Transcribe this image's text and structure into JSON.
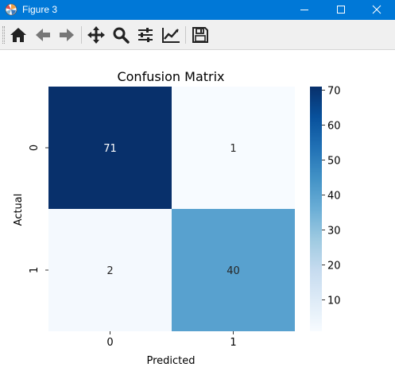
{
  "window": {
    "title": "Figure 3",
    "accent": "#0078d7"
  },
  "toolbar": {
    "buttons": [
      {
        "name": "home-icon",
        "label": "Home"
      },
      {
        "name": "back-arrow-icon",
        "label": "Back"
      },
      {
        "name": "forward-arrow-icon",
        "label": "Forward"
      },
      {
        "name": "pan-icon",
        "label": "Pan"
      },
      {
        "name": "zoom-icon",
        "label": "Zoom"
      },
      {
        "name": "configure-subplots-icon",
        "label": "Configure subplots"
      },
      {
        "name": "edit-axis-icon",
        "label": "Edit axis"
      },
      {
        "name": "save-icon",
        "label": "Save"
      }
    ]
  },
  "chart_data": {
    "type": "heatmap",
    "title": "Confusion Matrix",
    "xlabel": "Predicted",
    "ylabel": "Actual",
    "x_categories": [
      "0",
      "1"
    ],
    "y_categories": [
      "0",
      "1"
    ],
    "values": [
      [
        71,
        1
      ],
      [
        2,
        40
      ]
    ],
    "colormap": "Blues",
    "colorbar": {
      "min": 1,
      "max": 71,
      "ticks": [
        10,
        20,
        30,
        40,
        50,
        60,
        70
      ]
    },
    "annotation_colors": {
      "dark_bg": "#ffffff",
      "light_bg": "#262626"
    }
  }
}
